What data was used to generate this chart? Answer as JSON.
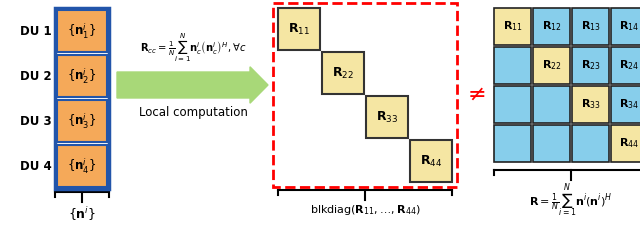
{
  "fig_width": 6.4,
  "fig_height": 2.37,
  "dpi": 100,
  "orange_color": "#F5A959",
  "blue_color": "#87CEEB",
  "yellow_color": "#F5E6A3",
  "blue_border": "#2255AA",
  "du_labels": [
    "DU 1",
    "DU 2",
    "DU 3",
    "DU 4"
  ],
  "math_labels": [
    "$\\{\\mathbf{n}_1^i\\}$",
    "$\\{\\mathbf{n}_2^i\\}$",
    "$\\{\\mathbf{n}_3^i\\}$",
    "$\\{\\mathbf{n}_4^i\\}$"
  ],
  "diag_labels": [
    "$\\mathbf{R}_{11}$",
    "$\\mathbf{R}_{22}$",
    "$\\mathbf{R}_{33}$",
    "$\\mathbf{R}_{44}$"
  ],
  "full_labels": [
    [
      "$\\mathbf{R}_{11}$",
      "$\\mathbf{R}_{12}$",
      "$\\mathbf{R}_{13}$",
      "$\\mathbf{R}_{14}$"
    ],
    [
      "",
      "$\\mathbf{R}_{22}$",
      "$\\mathbf{R}_{23}$",
      "$\\mathbf{R}_{24}$"
    ],
    [
      "",
      "",
      "$\\mathbf{R}_{33}$",
      "$\\mathbf{R}_{34}$"
    ],
    [
      "",
      "",
      "",
      "$\\mathbf{R}_{44}$"
    ]
  ],
  "formula_top": "$\\mathbf{R}_{cc}=\\frac{1}{N}\\sum_{i=1}^{N}\\mathbf{n}_c^i\\left(\\mathbf{n}_c^i\\right)^H, \\forall c$",
  "formula_bottom": "Local computation",
  "blkdiag_label": "blkdiag$(\\mathbf{R}_{11},\\ldots,\\mathbf{R}_{44})$",
  "full_matrix_label": "$\\mathbf{R}=\\frac{1}{N}\\sum_{i=1}^{N}\\mathbf{n}^i\\left(\\mathbf{n}^i\\right)^H$",
  "col_label": "$\\{\\mathbf{n}^i\\}$"
}
